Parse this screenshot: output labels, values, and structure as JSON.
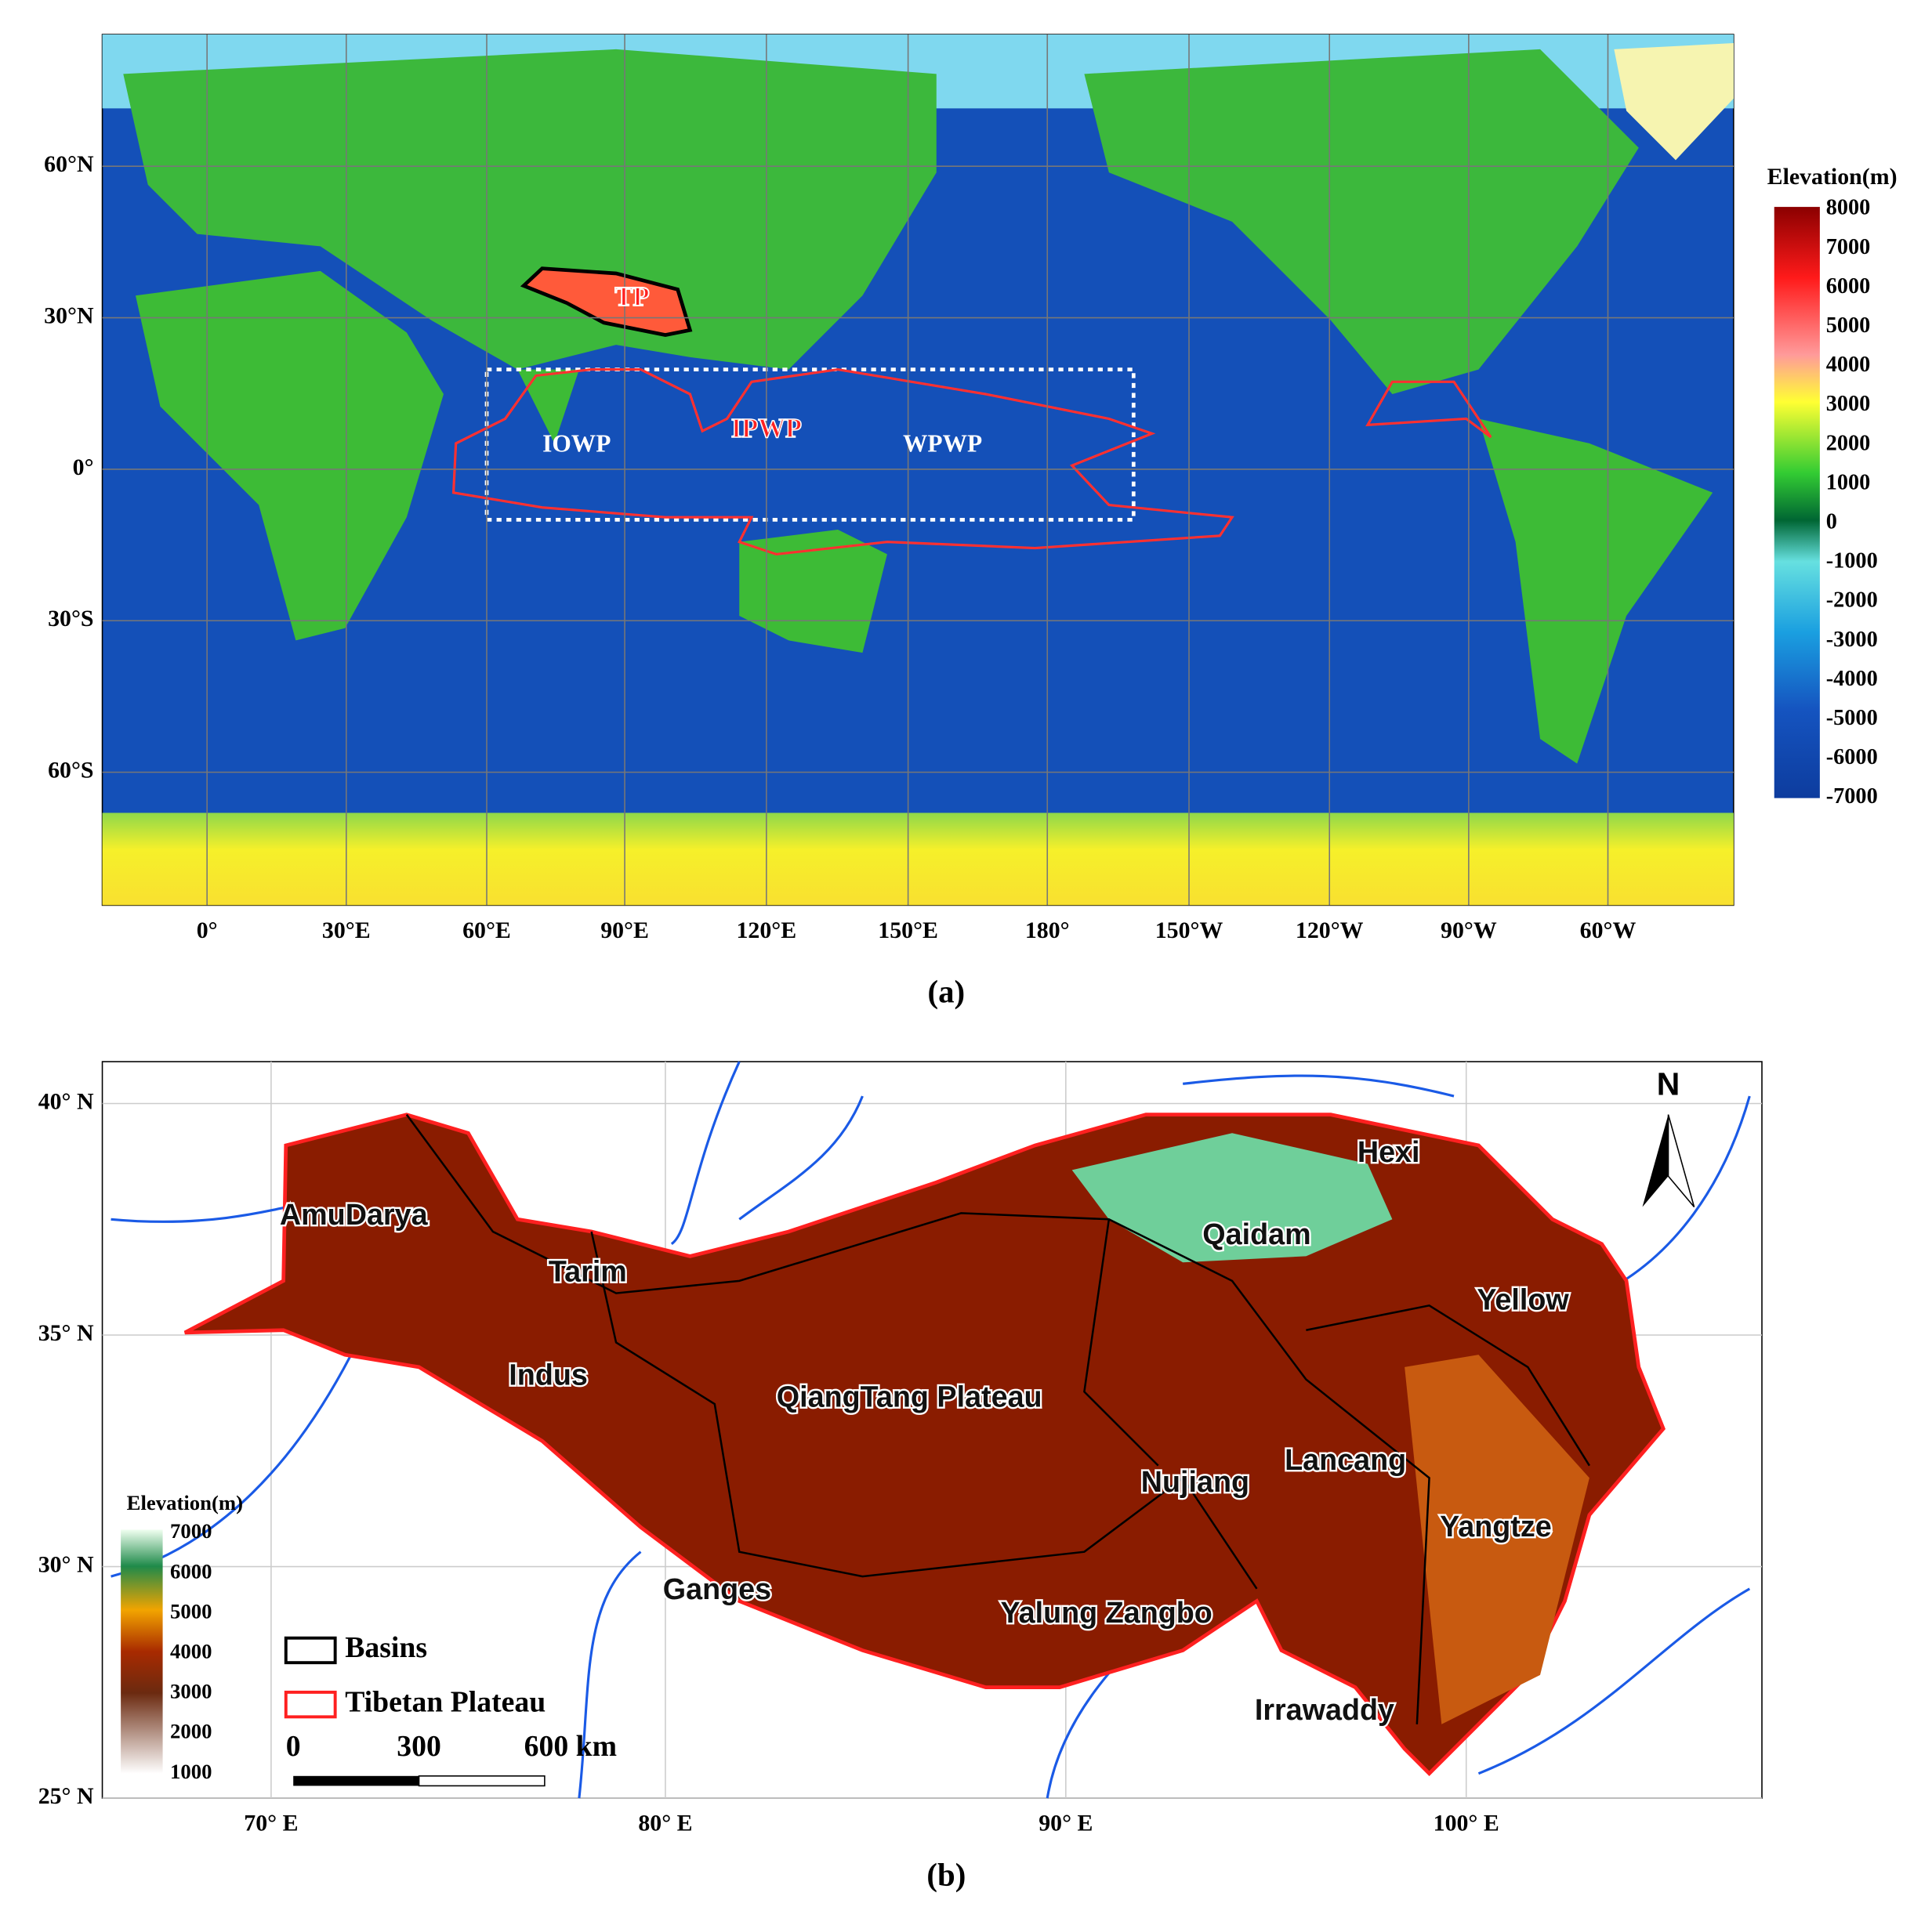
{
  "panel_a": {
    "lat_labels": [
      "60°N",
      "30°N",
      "0°",
      "30°S",
      "60°S"
    ],
    "lon_labels": [
      "0°",
      "30°E",
      "60°E",
      "90°E",
      "120°E",
      "150°E",
      "180°",
      "150°W",
      "120°W",
      "90°W",
      "60°W"
    ],
    "legend_title": "Elevation(m)",
    "legend_ticks": [
      "8000",
      "7000",
      "6000",
      "5000",
      "4000",
      "3000",
      "2000",
      "1000",
      "0",
      "-1000",
      "-2000",
      "-3000",
      "-4000",
      "-5000",
      "-6000",
      "-7000"
    ],
    "regions": [
      "TP",
      "IOWP",
      "IPWP",
      "WPWP"
    ],
    "caption": "(a)"
  },
  "panel_b": {
    "lat_labels": [
      "40° N",
      "35° N",
      "30° N",
      "25° N"
    ],
    "lon_labels": [
      "70° E",
      "80° E",
      "90° E",
      "100° E"
    ],
    "basins": [
      "AmuDarya",
      "Tarim",
      "Indus",
      "QiangTang Plateau",
      "Qaidam",
      "Hexi",
      "Yellow",
      "Lancang",
      "Nujiang",
      "Yangtze",
      "Ganges",
      "Yalung Zangbo",
      "Irrawaddy"
    ],
    "north": "N",
    "legend_title": "Elevation(m)",
    "legend_ticks": [
      "7000",
      "6000",
      "5000",
      "4000",
      "3000",
      "2000",
      "1000"
    ],
    "legend_items": [
      "Basins",
      "Tibetan Plateau"
    ],
    "scale_labels": [
      "0",
      "300",
      "600 km"
    ],
    "caption": "(b)"
  }
}
